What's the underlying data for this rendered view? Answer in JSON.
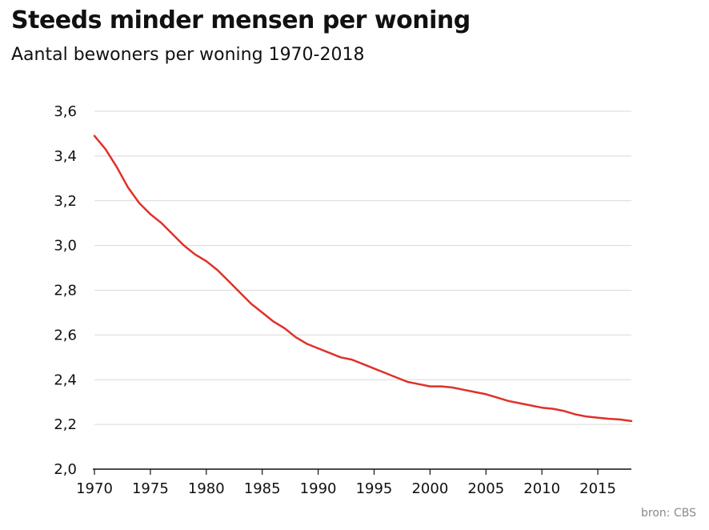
{
  "header": {
    "title": "Steeds minder mensen per woning",
    "subtitle": "Aantal bewoners per woning 1970-2018"
  },
  "source": "bron: CBS",
  "colors": {
    "line": "#e0302a",
    "grid": "#d9d9d9",
    "axis": "#111111"
  },
  "chart_data": {
    "type": "line",
    "title": "Steeds minder mensen per woning",
    "subtitle": "Aantal bewoners per woning 1970-2018",
    "xlabel": "",
    "ylabel": "",
    "xlim": [
      1970,
      2018
    ],
    "ylim": [
      2.0,
      3.6
    ],
    "grid": true,
    "legend": "none",
    "x_ticks": [
      1970,
      1975,
      1980,
      1985,
      1990,
      1995,
      2000,
      2005,
      2010,
      2015
    ],
    "x_tick_labels": [
      "1970",
      "1975",
      "1980",
      "1985",
      "1990",
      "1995",
      "2000",
      "2005",
      "2010",
      "2015"
    ],
    "y_ticks": [
      2.0,
      2.2,
      2.4,
      2.6,
      2.8,
      3.0,
      3.2,
      3.4,
      3.6
    ],
    "y_tick_labels": [
      "2,0",
      "2,2",
      "2,4",
      "2,6",
      "2,8",
      "3,0",
      "3,2",
      "3,4",
      "3,6"
    ],
    "series": [
      {
        "x": [
          1970,
          1971,
          1972,
          1973,
          1974,
          1975,
          1976,
          1977,
          1978,
          1979,
          1980,
          1981,
          1982,
          1983,
          1984,
          1985,
          1986,
          1987,
          1988,
          1989,
          1990,
          1991,
          1992,
          1993,
          1994,
          1995,
          1996,
          1997,
          1998,
          1999,
          2000,
          2001,
          2002,
          2003,
          2004,
          2005,
          2006,
          2007,
          2008,
          2009,
          2010,
          2011,
          2012,
          2013,
          2014,
          2015,
          2016,
          2017,
          2018
        ],
        "values": [
          3.49,
          3.43,
          3.35,
          3.26,
          3.19,
          3.14,
          3.1,
          3.05,
          3.0,
          2.96,
          2.93,
          2.89,
          2.84,
          2.79,
          2.74,
          2.7,
          2.66,
          2.63,
          2.59,
          2.56,
          2.54,
          2.52,
          2.5,
          2.49,
          2.47,
          2.45,
          2.43,
          2.41,
          2.39,
          2.38,
          2.37,
          2.37,
          2.365,
          2.355,
          2.345,
          2.335,
          2.32,
          2.305,
          2.295,
          2.285,
          2.275,
          2.27,
          2.26,
          2.245,
          2.235,
          2.23,
          2.225,
          2.222,
          2.215
        ]
      }
    ]
  }
}
